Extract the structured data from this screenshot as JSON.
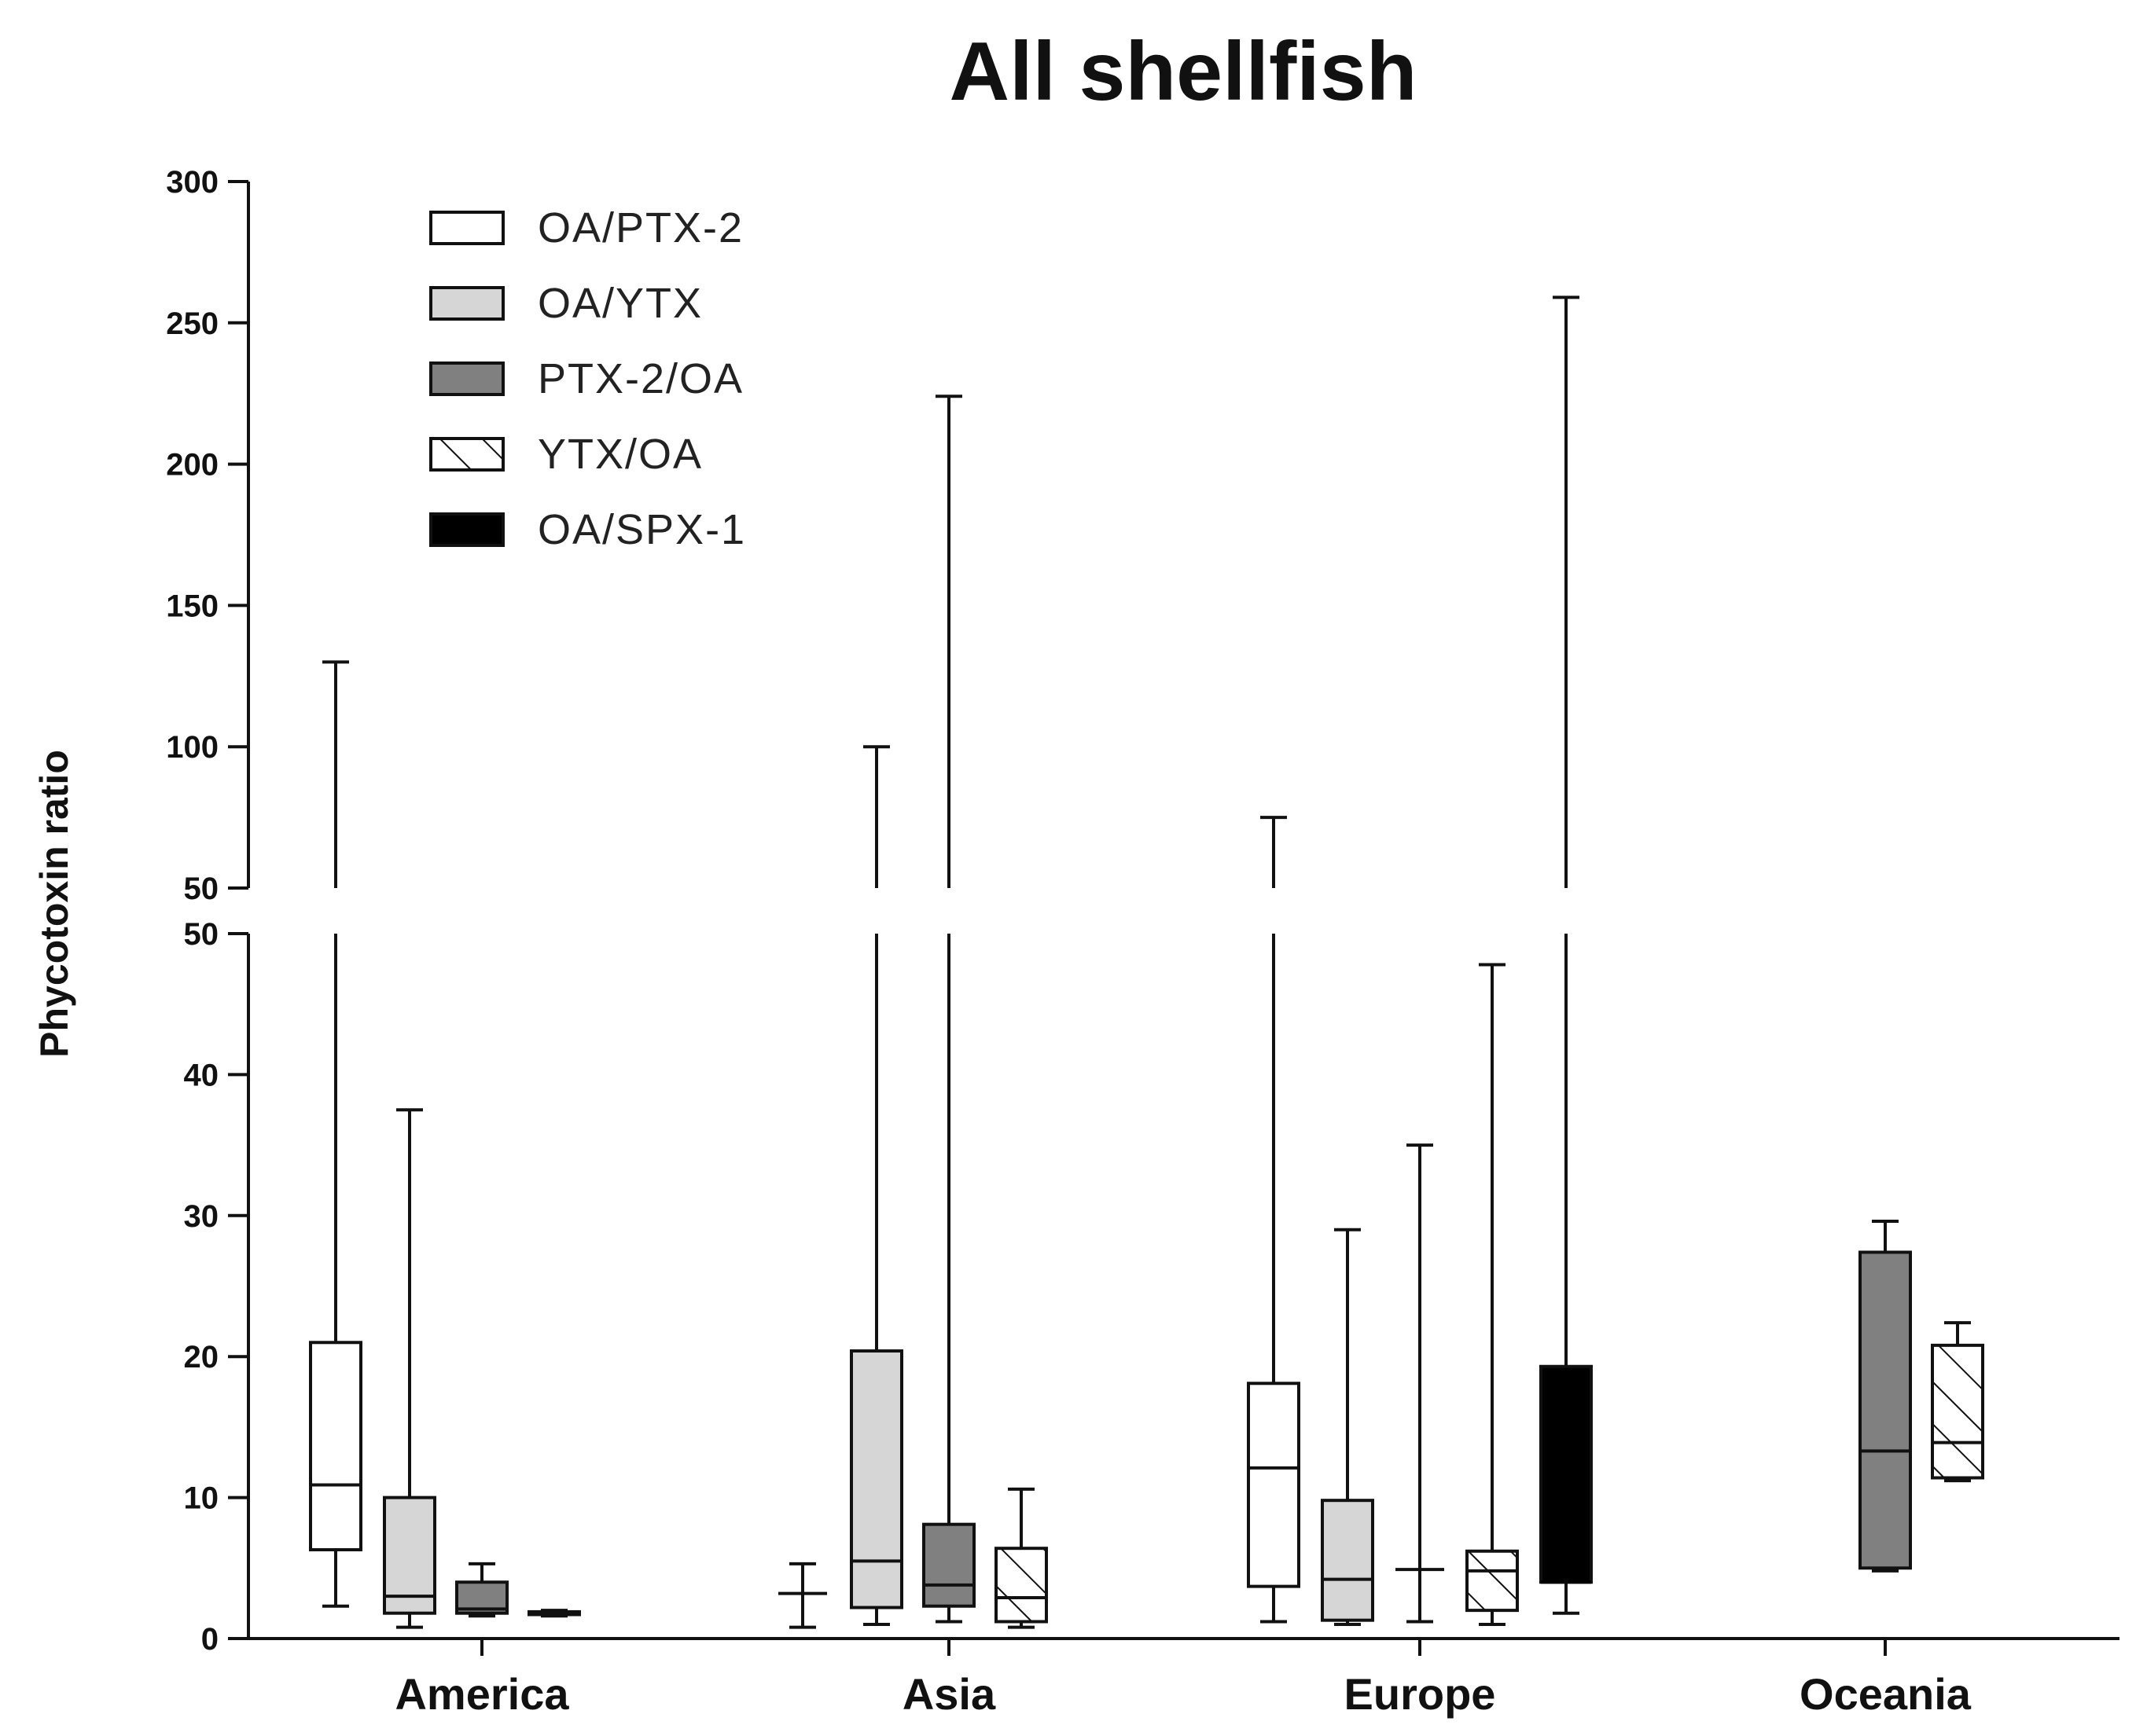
{
  "chart_data": {
    "type": "boxplot",
    "title": "All shellfish",
    "xlabel": "",
    "ylabel": "Phycotoxin ratio",
    "axis_break": {
      "lower_segment": {
        "ylim": [
          0,
          50
        ],
        "ticks": [
          0,
          10,
          20,
          30,
          40,
          50
        ]
      },
      "upper_segment": {
        "ylim": [
          50,
          300
        ],
        "ticks": [
          50,
          100,
          150,
          200,
          250,
          300
        ]
      }
    },
    "categories": [
      "America",
      "Asia",
      "Europe",
      "Oceania"
    ],
    "legend_position": "top-left",
    "series": [
      {
        "name": "OA/PTX-2",
        "fill": "#ffffff",
        "pattern": "none",
        "boxes": [
          {
            "category": "America",
            "min": 2.3,
            "q1": 6.3,
            "median": 10.9,
            "q3": 21.0,
            "max": 130
          },
          {
            "category": "Asia",
            "min": 0.8,
            "q1": 3.2,
            "median": 3.2,
            "q3": 3.2,
            "max": 5.3
          },
          {
            "category": "Europe",
            "min": 1.2,
            "q1": 3.7,
            "median": 12.1,
            "q3": 18.1,
            "max": 75
          }
        ]
      },
      {
        "name": "OA/YTX",
        "fill": "#d6d6d6",
        "pattern": "none",
        "boxes": [
          {
            "category": "America",
            "min": 0.8,
            "q1": 1.8,
            "median": 3.0,
            "q3": 10.0,
            "max": 37.5
          },
          {
            "category": "Asia",
            "min": 1.0,
            "q1": 2.2,
            "median": 5.5,
            "q3": 20.4,
            "max": 100
          },
          {
            "category": "Europe",
            "min": 1.0,
            "q1": 1.3,
            "median": 4.2,
            "q3": 9.8,
            "max": 29.0
          }
        ]
      },
      {
        "name": "PTX-2/OA",
        "fill": "#808080",
        "pattern": "none",
        "boxes": [
          {
            "category": "America",
            "min": 1.6,
            "q1": 1.8,
            "median": 2.1,
            "q3": 4.0,
            "max": 5.3
          },
          {
            "category": "Asia",
            "min": 1.2,
            "q1": 2.3,
            "median": 3.8,
            "q3": 8.1,
            "max": 224
          },
          {
            "category": "Europe",
            "min": 1.2,
            "q1": 4.9,
            "median": 4.9,
            "q3": 4.9,
            "max": 35.0
          },
          {
            "category": "Oceania",
            "min": 4.8,
            "q1": 5.0,
            "median": 13.3,
            "q3": 27.4,
            "max": 29.6
          }
        ]
      },
      {
        "name": "YTX/OA",
        "fill": "#ffffff",
        "pattern": "hatch",
        "boxes": [
          {
            "category": "America",
            "min": 1.6,
            "q1": 1.7,
            "median": 1.8,
            "q3": 1.9,
            "max": 2.0
          },
          {
            "category": "Asia",
            "min": 0.8,
            "q1": 1.2,
            "median": 2.9,
            "q3": 6.4,
            "max": 10.6
          },
          {
            "category": "Europe",
            "min": 1.0,
            "q1": 2.0,
            "median": 4.8,
            "q3": 6.2,
            "max": 47.8
          },
          {
            "category": "Oceania",
            "min": 11.2,
            "q1": 11.4,
            "median": 13.9,
            "q3": 20.8,
            "max": 22.4
          }
        ]
      },
      {
        "name": "OA/SPX-1",
        "fill": "#000000",
        "pattern": "none",
        "boxes": [
          {
            "category": "Europe",
            "min": 1.8,
            "q1": 4.0,
            "median": 4.0,
            "q3": 19.3,
            "max": 259
          }
        ]
      }
    ]
  }
}
